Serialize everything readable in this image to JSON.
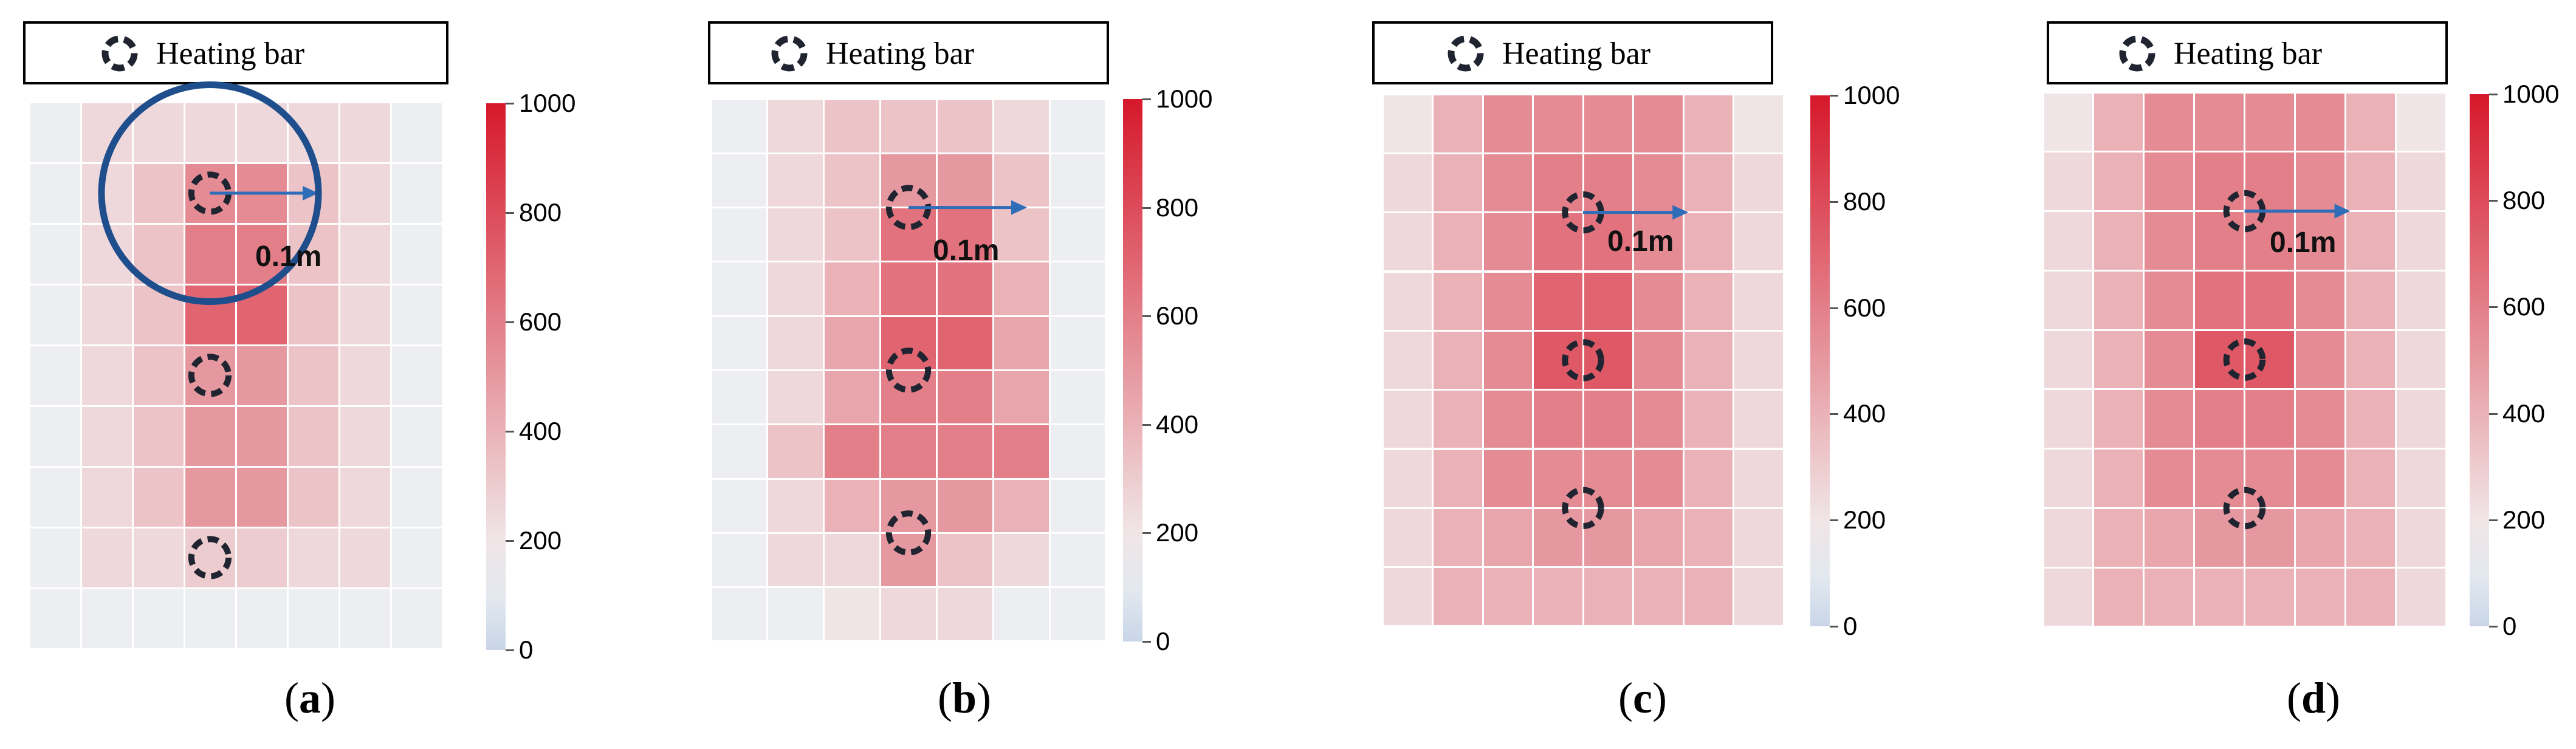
{
  "legend_label": "Heating bar",
  "legend_icon": "dashed-circle-icon",
  "distance_label": "0.1m",
  "colorbar": {
    "min": 0,
    "max": 1000,
    "ticks": [
      0,
      200,
      400,
      600,
      800,
      1000
    ]
  },
  "colors": {
    "low": "#c9d6e8",
    "mid": "#f2f2f2",
    "high": "#d6182b",
    "arrow": "#2f6db8",
    "circle": "#1f4e8c",
    "marker": "#1f2430"
  },
  "chart_data": [
    {
      "type": "heatmap",
      "panel": "(a)",
      "rows": 9,
      "cols": 8,
      "values": [
        [
          130,
          250,
          250,
          250,
          250,
          250,
          250,
          130
        ],
        [
          130,
          250,
          330,
          550,
          550,
          330,
          250,
          130
        ],
        [
          130,
          250,
          330,
          600,
          600,
          330,
          250,
          130
        ],
        [
          130,
          250,
          330,
          700,
          700,
          330,
          250,
          130
        ],
        [
          130,
          250,
          330,
          500,
          500,
          330,
          250,
          130
        ],
        [
          130,
          250,
          330,
          500,
          500,
          330,
          250,
          130
        ],
        [
          130,
          250,
          330,
          500,
          500,
          330,
          250,
          130
        ],
        [
          130,
          250,
          250,
          300,
          300,
          250,
          250,
          130
        ],
        [
          130,
          130,
          130,
          130,
          130,
          130,
          130,
          130
        ]
      ],
      "heating_bars": [
        [
          1.5,
          3.5
        ],
        [
          4.5,
          3.5
        ],
        [
          7.5,
          3.5
        ]
      ],
      "colorbar_ticks": [
        0,
        200,
        400,
        600,
        800,
        1000
      ],
      "has_range_circle": true
    },
    {
      "type": "heatmap",
      "panel": "(b)",
      "rows": 10,
      "cols": 7,
      "values": [
        [
          130,
          250,
          330,
          330,
          330,
          250,
          130
        ],
        [
          130,
          250,
          330,
          500,
          500,
          330,
          130
        ],
        [
          130,
          250,
          330,
          650,
          650,
          330,
          130
        ],
        [
          130,
          250,
          400,
          650,
          650,
          400,
          130
        ],
        [
          130,
          250,
          450,
          700,
          700,
          450,
          130
        ],
        [
          130,
          250,
          450,
          600,
          600,
          450,
          130
        ],
        [
          130,
          330,
          600,
          600,
          600,
          600,
          130
        ],
        [
          130,
          250,
          400,
          500,
          500,
          400,
          130
        ],
        [
          130,
          250,
          250,
          500,
          330,
          250,
          130
        ],
        [
          130,
          130,
          200,
          250,
          250,
          130,
          130
        ]
      ],
      "heating_bars": [
        [
          2,
          3.5
        ],
        [
          5,
          3.5
        ],
        [
          8,
          3.5
        ]
      ],
      "colorbar_ticks": [
        0,
        200,
        400,
        600,
        800,
        1000
      ],
      "has_range_circle": false
    },
    {
      "type": "heatmap",
      "panel": "(c)",
      "rows": 9,
      "cols": 8,
      "values": [
        [
          200,
          400,
          550,
          550,
          550,
          550,
          400,
          200
        ],
        [
          250,
          400,
          550,
          600,
          600,
          550,
          400,
          250
        ],
        [
          250,
          400,
          550,
          650,
          650,
          550,
          400,
          250
        ],
        [
          250,
          400,
          550,
          700,
          700,
          550,
          400,
          250
        ],
        [
          250,
          400,
          550,
          750,
          750,
          550,
          400,
          250
        ],
        [
          250,
          400,
          550,
          600,
          600,
          550,
          400,
          250
        ],
        [
          250,
          400,
          550,
          550,
          550,
          550,
          400,
          250
        ],
        [
          250,
          400,
          450,
          500,
          500,
          450,
          400,
          250
        ],
        [
          250,
          400,
          400,
          400,
          400,
          400,
          400,
          250
        ]
      ],
      "heating_bars": [
        [
          2,
          4
        ],
        [
          4.5,
          4
        ],
        [
          7,
          4
        ]
      ],
      "colorbar_ticks": [
        0,
        200,
        400,
        600,
        800,
        1000
      ],
      "has_range_circle": false
    },
    {
      "type": "heatmap",
      "panel": "(d)",
      "rows": 9,
      "cols": 8,
      "values": [
        [
          200,
          400,
          550,
          550,
          550,
          550,
          400,
          200
        ],
        [
          250,
          400,
          550,
          600,
          600,
          550,
          400,
          250
        ],
        [
          250,
          400,
          550,
          600,
          600,
          550,
          400,
          250
        ],
        [
          250,
          400,
          550,
          650,
          650,
          550,
          400,
          250
        ],
        [
          250,
          400,
          550,
          750,
          750,
          550,
          400,
          250
        ],
        [
          250,
          400,
          550,
          600,
          600,
          550,
          400,
          250
        ],
        [
          250,
          400,
          550,
          550,
          550,
          550,
          400,
          250
        ],
        [
          250,
          400,
          450,
          500,
          500,
          450,
          400,
          250
        ],
        [
          250,
          400,
          400,
          400,
          400,
          400,
          400,
          250
        ]
      ],
      "heating_bars": [
        [
          2,
          4
        ],
        [
          4.5,
          4
        ],
        [
          7,
          4
        ]
      ],
      "colorbar_ticks": [
        0,
        200,
        400,
        600,
        800,
        1000
      ],
      "has_range_circle": false
    }
  ],
  "panels": [
    {
      "label": "(a)",
      "letter": "a"
    },
    {
      "label": "(b)",
      "letter": "b"
    },
    {
      "label": "(c)",
      "letter": "c"
    },
    {
      "label": "(d)",
      "letter": "d"
    }
  ]
}
